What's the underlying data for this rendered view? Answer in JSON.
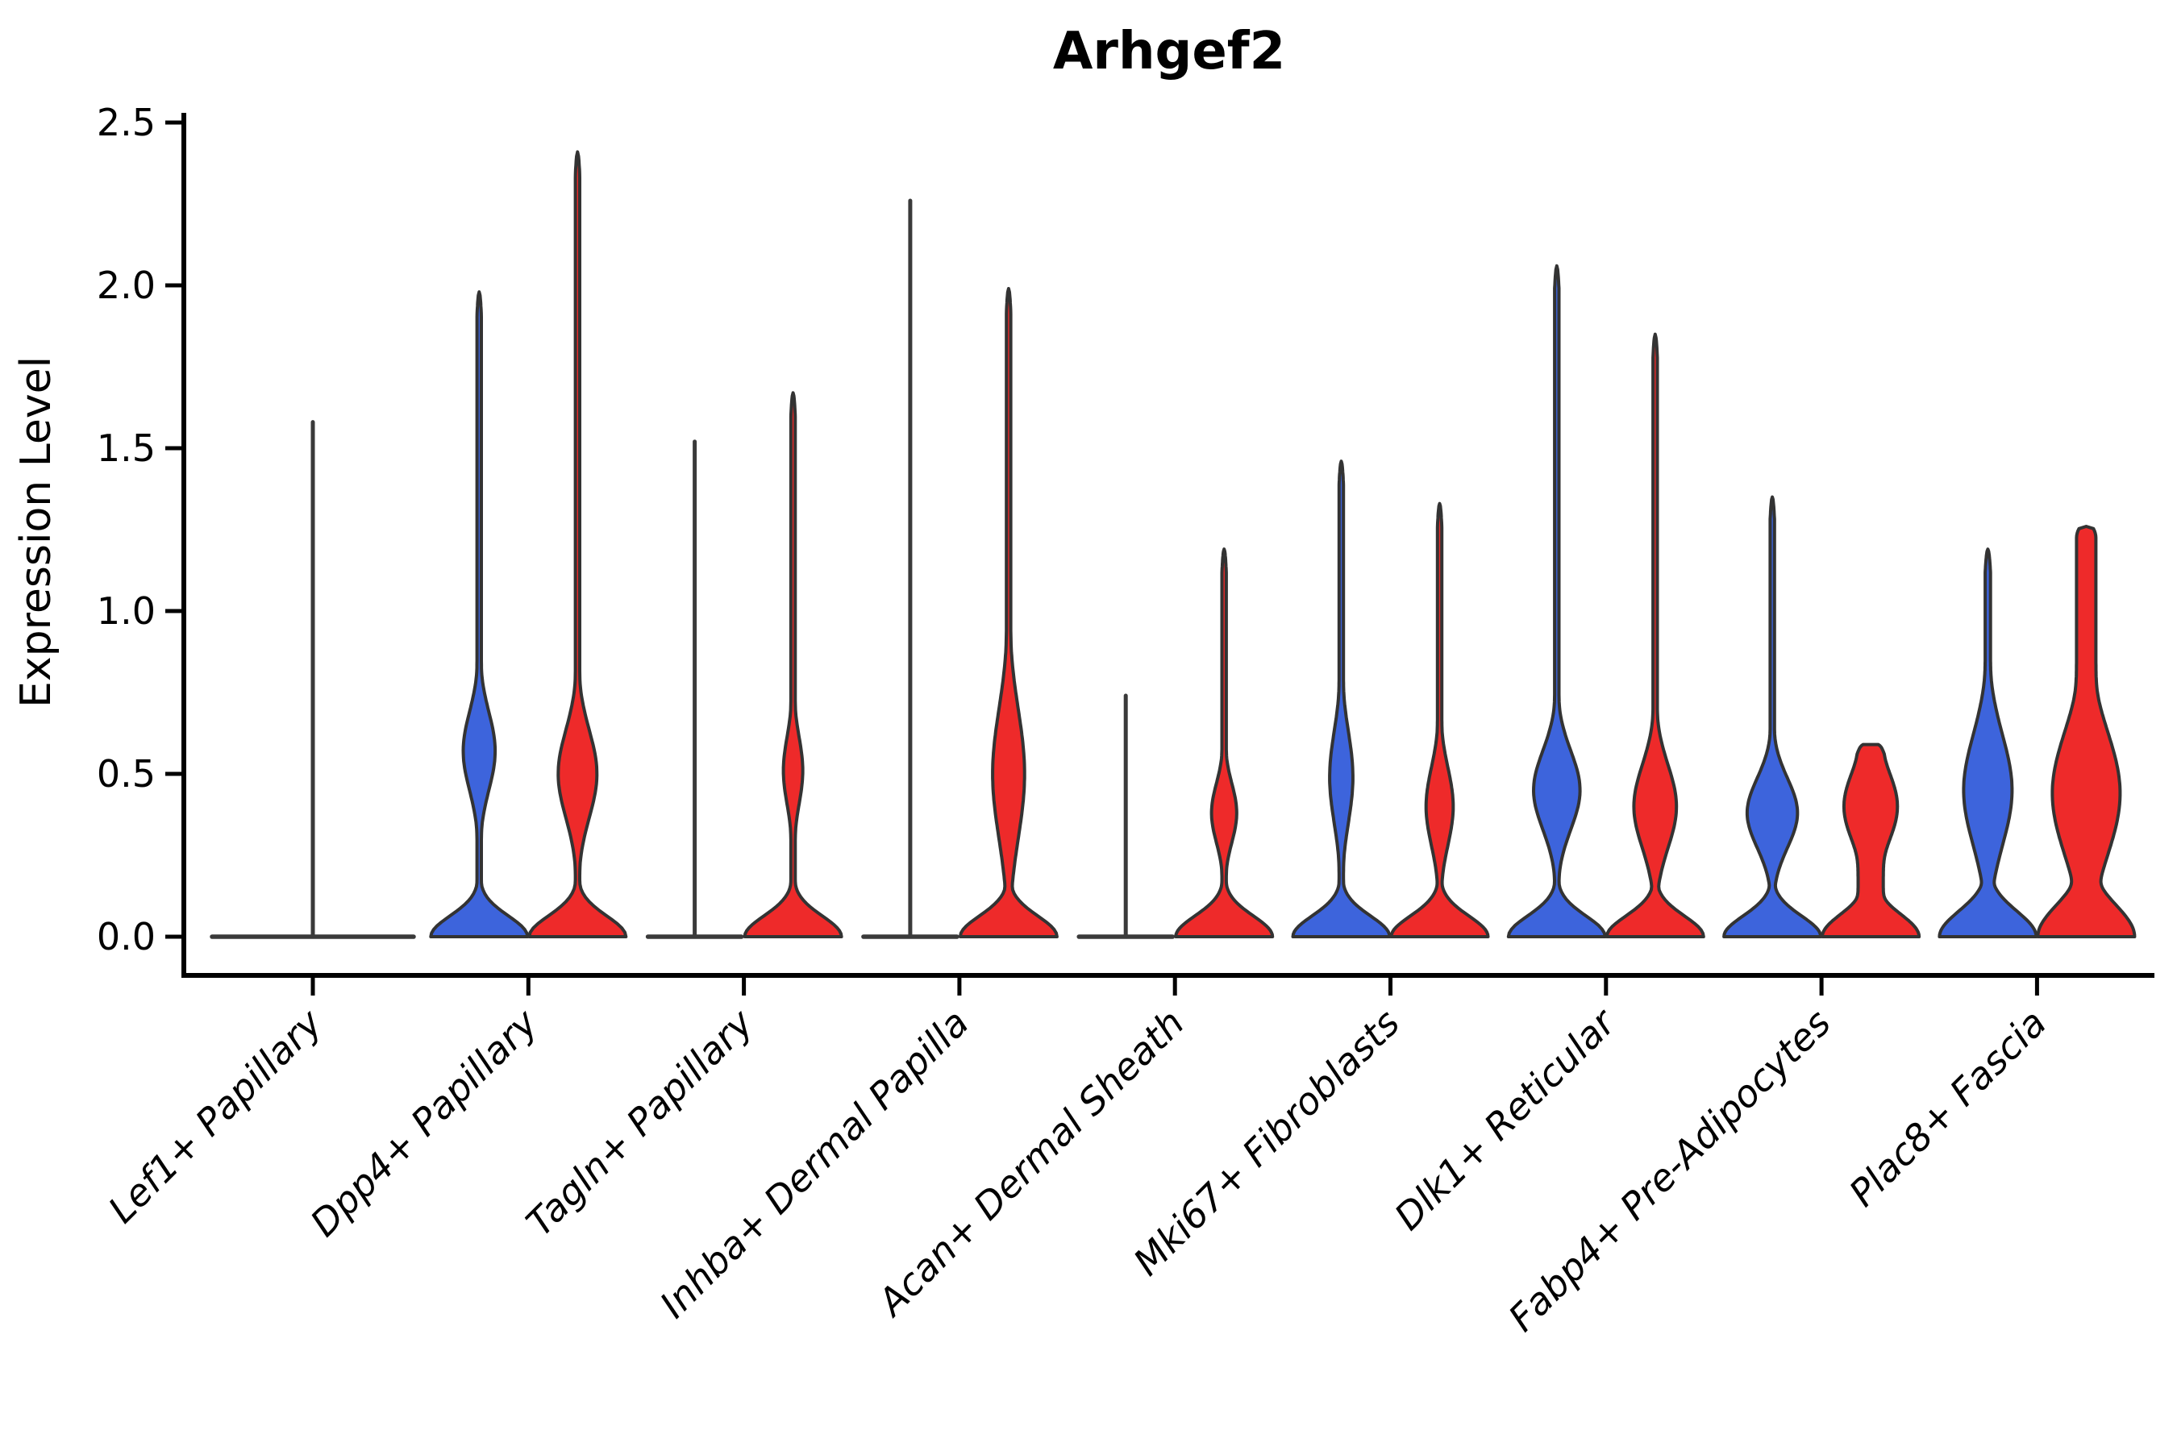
{
  "chart_data": {
    "type": "violin",
    "title": "Arhgef2",
    "ylabel": "Expression Level",
    "xlabel": "",
    "ylim": [
      0,
      2.5
    ],
    "yticks": [
      0.0,
      0.5,
      1.0,
      1.5,
      2.0,
      2.5
    ],
    "ytick_labels": [
      "0.0",
      "0.5",
      "1.0",
      "1.5",
      "2.0",
      "2.5"
    ],
    "grid": false,
    "legend": "none",
    "categories": [
      "Lef1+ Papillary",
      "Dpp4+ Papillary",
      "Tagln+ Papillary",
      "Inhba+ Dermal Papilla",
      "Acan+ Dermal Sheath",
      "Mki67+ Fibroblasts",
      "Dlk1+ Reticular",
      "Fabp4+ Pre-Adipocytes",
      "Plac8+ Fascia"
    ],
    "colors": {
      "blue": "#3d64dc",
      "red": "#ee2a2a",
      "outline": "#333333",
      "flat_line": "#3a3a3a",
      "axis": "#000000"
    },
    "violins": [
      {
        "category_index": 0,
        "group": "all",
        "side": "center",
        "kind": "flat",
        "max": 1.58
      },
      {
        "category_index": 1,
        "group": "blue",
        "side": "left",
        "kind": "body",
        "max": 1.98,
        "bulge": {
          "c": 0.57,
          "s": 0.17,
          "r": 0.33
        }
      },
      {
        "category_index": 1,
        "group": "red",
        "side": "right",
        "kind": "body",
        "max": 2.41,
        "bulge": {
          "c": 0.5,
          "s": 0.19,
          "r": 0.4
        }
      },
      {
        "category_index": 2,
        "group": "blue",
        "side": "left",
        "kind": "flat",
        "max": 1.52
      },
      {
        "category_index": 2,
        "group": "red",
        "side": "right",
        "kind": "body",
        "max": 1.67,
        "bulge": {
          "c": 0.51,
          "s": 0.15,
          "r": 0.2
        }
      },
      {
        "category_index": 3,
        "group": "blue",
        "side": "left",
        "kind": "flat",
        "max": 2.26
      },
      {
        "category_index": 3,
        "group": "red",
        "side": "right",
        "kind": "body",
        "max": 1.99,
        "bulge": {
          "c": 0.5,
          "s": 0.28,
          "r": 0.33
        }
      },
      {
        "category_index": 4,
        "group": "blue",
        "side": "left",
        "kind": "flat",
        "max": 0.74
      },
      {
        "category_index": 4,
        "group": "red",
        "side": "right",
        "kind": "body",
        "max": 1.19,
        "bulge": {
          "c": 0.38,
          "s": 0.13,
          "r": 0.26
        }
      },
      {
        "category_index": 5,
        "group": "blue",
        "side": "left",
        "kind": "body",
        "max": 1.46,
        "bulge": {
          "c": 0.49,
          "s": 0.2,
          "r": 0.24
        }
      },
      {
        "category_index": 5,
        "group": "red",
        "side": "right",
        "kind": "body",
        "max": 1.33,
        "bulge": {
          "c": 0.4,
          "s": 0.17,
          "r": 0.28
        }
      },
      {
        "category_index": 6,
        "group": "blue",
        "side": "left",
        "kind": "body",
        "max": 2.06,
        "bulge": {
          "c": 0.45,
          "s": 0.17,
          "r": 0.48
        }
      },
      {
        "category_index": 6,
        "group": "red",
        "side": "right",
        "kind": "body",
        "max": 1.85,
        "bulge": {
          "c": 0.4,
          "s": 0.18,
          "r": 0.44
        }
      },
      {
        "category_index": 7,
        "group": "blue",
        "side": "left",
        "kind": "body",
        "max": 1.35,
        "bulge": {
          "c": 0.38,
          "s": 0.15,
          "r": 0.52
        }
      },
      {
        "category_index": 7,
        "group": "red",
        "side": "right",
        "kind": "body",
        "max": 0.59,
        "bulge": {
          "c": 0.4,
          "s": 0.17,
          "r": 0.55
        },
        "top": "blunt",
        "spike": 0.26,
        "base_sigma": 0.1
      },
      {
        "category_index": 8,
        "group": "blue",
        "side": "left",
        "kind": "body",
        "max": 1.19,
        "bulge": {
          "c": 0.45,
          "s": 0.24,
          "r": 0.5
        },
        "spike": 0.055,
        "base_sigma": 0.11
      },
      {
        "category_index": 8,
        "group": "red",
        "side": "right",
        "kind": "body",
        "max": 1.26,
        "bulge": {
          "c": 0.44,
          "s": 0.28,
          "r": 0.7
        },
        "top": "blunt",
        "spike": 0.2,
        "base_sigma": 0.14
      }
    ]
  }
}
